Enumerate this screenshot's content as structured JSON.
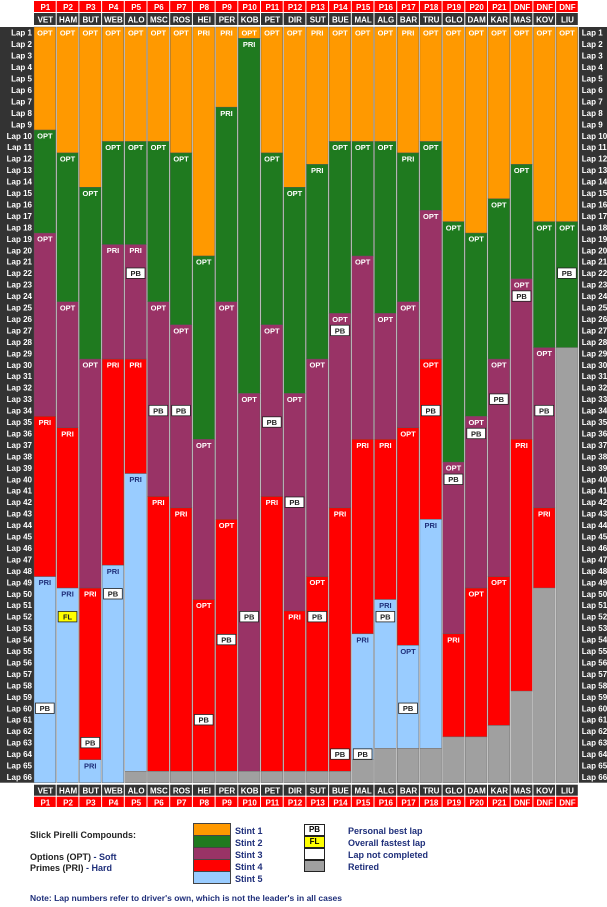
{
  "chart_data": {
    "type": "stacked-bar",
    "total_laps": 66,
    "lap_label_prefix": "Lap",
    "drivers": [
      {
        "pos": "P1",
        "code": "VET",
        "stints": [
          {
            "tyre": "OPT",
            "start": 1,
            "end": 9
          },
          {
            "tyre": "OPT",
            "start": 10,
            "end": 18
          },
          {
            "tyre": "OPT",
            "start": 19,
            "end": 34
          },
          {
            "tyre": "PRI",
            "start": 35,
            "end": 48
          },
          {
            "tyre": "PRI",
            "start": 49,
            "end": 66
          }
        ],
        "pb": [
          60
        ],
        "fl": [],
        "retired_from": null
      },
      {
        "pos": "P2",
        "code": "HAM",
        "stints": [
          {
            "tyre": "OPT",
            "start": 1,
            "end": 11
          },
          {
            "tyre": "OPT",
            "start": 12,
            "end": 24
          },
          {
            "tyre": "OPT",
            "start": 25,
            "end": 35
          },
          {
            "tyre": "PRI",
            "start": 36,
            "end": 49
          },
          {
            "tyre": "PRI",
            "start": 50,
            "end": 66
          }
        ],
        "pb": [],
        "fl": [
          52
        ],
        "retired_from": null
      },
      {
        "pos": "P3",
        "code": "BUT",
        "stints": [
          {
            "tyre": "OPT",
            "start": 1,
            "end": 14
          },
          {
            "tyre": "OPT",
            "start": 15,
            "end": 29
          },
          {
            "tyre": "OPT",
            "start": 30,
            "end": 49
          },
          {
            "tyre": "PRI",
            "start": 50,
            "end": 64
          },
          {
            "tyre": "PRI",
            "start": 65,
            "end": 66
          }
        ],
        "pb": [
          63
        ],
        "fl": [],
        "retired_from": null
      },
      {
        "pos": "P4",
        "code": "WEB",
        "stints": [
          {
            "tyre": "OPT",
            "start": 1,
            "end": 10
          },
          {
            "tyre": "OPT",
            "start": 11,
            "end": 19
          },
          {
            "tyre": "PRI",
            "start": 20,
            "end": 29
          },
          {
            "tyre": "PRI",
            "start": 30,
            "end": 47
          },
          {
            "tyre": "PRI",
            "start": 48,
            "end": 66
          }
        ],
        "pb": [
          50
        ],
        "fl": [],
        "retired_from": null
      },
      {
        "pos": "P5",
        "code": "ALO",
        "stints": [
          {
            "tyre": "OPT",
            "start": 1,
            "end": 10
          },
          {
            "tyre": "OPT",
            "start": 11,
            "end": 19
          },
          {
            "tyre": "PRI",
            "start": 20,
            "end": 29
          },
          {
            "tyre": "PRI",
            "start": 30,
            "end": 39
          },
          {
            "tyre": "PRI",
            "start": 40,
            "end": 65
          }
        ],
        "pb": [
          22
        ],
        "fl": [],
        "retired_from": null
      },
      {
        "pos": "P6",
        "code": "MSC",
        "stints": [
          {
            "tyre": "OPT",
            "start": 1,
            "end": 10
          },
          {
            "tyre": "OPT",
            "start": 11,
            "end": 24
          },
          {
            "tyre": "OPT",
            "start": 25,
            "end": 41
          },
          {
            "tyre": "PRI",
            "start": 42,
            "end": 65
          }
        ],
        "pb": [
          34
        ],
        "fl": [],
        "retired_from": null
      },
      {
        "pos": "P7",
        "code": "ROS",
        "stints": [
          {
            "tyre": "OPT",
            "start": 1,
            "end": 11
          },
          {
            "tyre": "OPT",
            "start": 12,
            "end": 26
          },
          {
            "tyre": "OPT",
            "start": 27,
            "end": 42
          },
          {
            "tyre": "PRI",
            "start": 43,
            "end": 65
          }
        ],
        "pb": [
          34
        ],
        "fl": [],
        "retired_from": null
      },
      {
        "pos": "P8",
        "code": "HEI",
        "stints": [
          {
            "tyre": "PRI",
            "start": 1,
            "end": 20
          },
          {
            "tyre": "OPT",
            "start": 21,
            "end": 36
          },
          {
            "tyre": "OPT",
            "start": 37,
            "end": 50
          },
          {
            "tyre": "OPT",
            "start": 51,
            "end": 65
          }
        ],
        "pb": [
          61
        ],
        "fl": [],
        "retired_from": null
      },
      {
        "pos": "P9",
        "code": "PER",
        "stints": [
          {
            "tyre": "PRI",
            "start": 1,
            "end": 7
          },
          {
            "tyre": "PRI",
            "start": 8,
            "end": 24
          },
          {
            "tyre": "OPT",
            "start": 25,
            "end": 43
          },
          {
            "tyre": "OPT",
            "start": 44,
            "end": 65
          }
        ],
        "pb": [
          54
        ],
        "fl": [],
        "retired_from": null
      },
      {
        "pos": "P10",
        "code": "KOB",
        "stints": [
          {
            "tyre": "OPT",
            "start": 1,
            "end": 1
          },
          {
            "tyre": "PRI",
            "start": 2,
            "end": 32
          },
          {
            "tyre": "OPT",
            "start": 33,
            "end": 65
          }
        ],
        "pb": [
          52
        ],
        "fl": [],
        "retired_from": null
      },
      {
        "pos": "P11",
        "code": "PET",
        "stints": [
          {
            "tyre": "OPT",
            "start": 1,
            "end": 11
          },
          {
            "tyre": "OPT",
            "start": 12,
            "end": 26
          },
          {
            "tyre": "OPT",
            "start": 27,
            "end": 41
          },
          {
            "tyre": "PRI",
            "start": 42,
            "end": 65
          }
        ],
        "pb": [
          35
        ],
        "fl": [],
        "retired_from": null
      },
      {
        "pos": "P12",
        "code": "DIR",
        "stints": [
          {
            "tyre": "OPT",
            "start": 1,
            "end": 14
          },
          {
            "tyre": "OPT",
            "start": 15,
            "end": 32
          },
          {
            "tyre": "OPT",
            "start": 33,
            "end": 51
          },
          {
            "tyre": "PRI",
            "start": 52,
            "end": 65
          }
        ],
        "pb": [
          42
        ],
        "fl": [],
        "retired_from": null
      },
      {
        "pos": "P13",
        "code": "SUT",
        "stints": [
          {
            "tyre": "PRI",
            "start": 1,
            "end": 12
          },
          {
            "tyre": "PRI",
            "start": 13,
            "end": 29
          },
          {
            "tyre": "OPT",
            "start": 30,
            "end": 48
          },
          {
            "tyre": "OPT",
            "start": 49,
            "end": 65
          }
        ],
        "pb": [
          52
        ],
        "fl": [],
        "retired_from": null
      },
      {
        "pos": "P14",
        "code": "BUE",
        "stints": [
          {
            "tyre": "OPT",
            "start": 1,
            "end": 10
          },
          {
            "tyre": "OPT",
            "start": 11,
            "end": 25
          },
          {
            "tyre": "OPT",
            "start": 26,
            "end": 42
          },
          {
            "tyre": "PRI",
            "start": 43,
            "end": 65
          }
        ],
        "pb": [
          27,
          64
        ],
        "fl": [],
        "retired_from": null
      },
      {
        "pos": "P15",
        "code": "MAL",
        "stints": [
          {
            "tyre": "OPT",
            "start": 1,
            "end": 10
          },
          {
            "tyre": "OPT",
            "start": 11,
            "end": 20
          },
          {
            "tyre": "OPT",
            "start": 21,
            "end": 36
          },
          {
            "tyre": "PRI",
            "start": 37,
            "end": 53
          },
          {
            "tyre": "PRI",
            "start": 54,
            "end": 64
          }
        ],
        "pb": [
          64
        ],
        "fl": [],
        "retired_from": null
      },
      {
        "pos": "P16",
        "code": "ALG",
        "stints": [
          {
            "tyre": "OPT",
            "start": 1,
            "end": 10
          },
          {
            "tyre": "OPT",
            "start": 11,
            "end": 25
          },
          {
            "tyre": "OPT",
            "start": 26,
            "end": 36
          },
          {
            "tyre": "PRI",
            "start": 37,
            "end": 50
          },
          {
            "tyre": "PRI",
            "start": 51,
            "end": 63
          }
        ],
        "pb": [
          52
        ],
        "fl": [],
        "retired_from": null
      },
      {
        "pos": "P17",
        "code": "BAR",
        "stints": [
          {
            "tyre": "PRI",
            "start": 1,
            "end": 11
          },
          {
            "tyre": "PRI",
            "start": 12,
            "end": 24
          },
          {
            "tyre": "OPT",
            "start": 25,
            "end": 35
          },
          {
            "tyre": "OPT",
            "start": 36,
            "end": 54
          },
          {
            "tyre": "OPT",
            "start": 55,
            "end": 63
          }
        ],
        "pb": [
          60
        ],
        "fl": [],
        "retired_from": null
      },
      {
        "pos": "P18",
        "code": "TRU",
        "stints": [
          {
            "tyre": "OPT",
            "start": 1,
            "end": 10
          },
          {
            "tyre": "OPT",
            "start": 11,
            "end": 16
          },
          {
            "tyre": "OPT",
            "start": 17,
            "end": 29
          },
          {
            "tyre": "OPT",
            "start": 30,
            "end": 43
          },
          {
            "tyre": "PRI",
            "start": 44,
            "end": 63
          }
        ],
        "pb": [
          34
        ],
        "fl": [],
        "retired_from": null
      },
      {
        "pos": "P19",
        "code": "GLO",
        "stints": [
          {
            "tyre": "OPT",
            "start": 1,
            "end": 17
          },
          {
            "tyre": "OPT",
            "start": 18,
            "end": 38
          },
          {
            "tyre": "OPT",
            "start": 39,
            "end": 53
          },
          {
            "tyre": "PRI",
            "start": 54,
            "end": 62
          }
        ],
        "pb": [
          40
        ],
        "fl": [],
        "retired_from": null
      },
      {
        "pos": "P20",
        "code": "DAM",
        "stints": [
          {
            "tyre": "OPT",
            "start": 1,
            "end": 18
          },
          {
            "tyre": "OPT",
            "start": 19,
            "end": 34
          },
          {
            "tyre": "OPT",
            "start": 35,
            "end": 49
          },
          {
            "tyre": "OPT",
            "start": 50,
            "end": 62
          }
        ],
        "pb": [
          36
        ],
        "fl": [],
        "retired_from": null
      },
      {
        "pos": "P21",
        "code": "KAR",
        "stints": [
          {
            "tyre": "OPT",
            "start": 1,
            "end": 15
          },
          {
            "tyre": "OPT",
            "start": 16,
            "end": 29
          },
          {
            "tyre": "OPT",
            "start": 30,
            "end": 48
          },
          {
            "tyre": "OPT",
            "start": 49,
            "end": 61
          }
        ],
        "pb": [
          33
        ],
        "fl": [],
        "retired_from": null
      },
      {
        "pos": "DNF",
        "code": "MAS",
        "stints": [
          {
            "tyre": "OPT",
            "start": 1,
            "end": 12
          },
          {
            "tyre": "OPT",
            "start": 13,
            "end": 22
          },
          {
            "tyre": "OPT",
            "start": 23,
            "end": 36
          },
          {
            "tyre": "PRI",
            "start": 37,
            "end": 58
          }
        ],
        "pb": [
          24
        ],
        "fl": [],
        "retired_from": 59
      },
      {
        "pos": "DNF",
        "code": "KOV",
        "stints": [
          {
            "tyre": "OPT",
            "start": 1,
            "end": 17
          },
          {
            "tyre": "OPT",
            "start": 18,
            "end": 28
          },
          {
            "tyre": "OPT",
            "start": 29,
            "end": 42
          },
          {
            "tyre": "PRI",
            "start": 43,
            "end": 49
          }
        ],
        "pb": [
          34
        ],
        "fl": [],
        "retired_from": 50
      },
      {
        "pos": "DNF",
        "code": "LIU",
        "stints": [
          {
            "tyre": "OPT",
            "start": 1,
            "end": 17
          },
          {
            "tyre": "OPT",
            "start": 18,
            "end": 28
          }
        ],
        "pb": [
          22
        ],
        "fl": [],
        "retired_from": 29
      }
    ],
    "stint_colors": [
      "#ff9900",
      "#1f7a1f",
      "#993366",
      "#ff0000",
      "#99ccff"
    ],
    "retired_color": "#a0a0a0",
    "legend": {
      "heading": "Slick Pirelli Compounds:",
      "options_label": "Options (OPT)",
      "options_value": "- Soft",
      "primes_label": "Primes (PRI)",
      "primes_value": "- Hard",
      "stints": [
        "Stint 1",
        "Stint 2",
        "Stint 3",
        "Stint 4",
        "Stint 5"
      ],
      "symbols": [
        {
          "code": "PB",
          "text": "Personal best lap",
          "color": "#ffffff"
        },
        {
          "code": "FL",
          "text": "Overall fastest lap",
          "color": "#ffff00"
        },
        {
          "code": "",
          "text": "Lap not completed",
          "color": "#ffffff"
        },
        {
          "code": "",
          "text": "Retired",
          "color": "#a0a0a0"
        }
      ],
      "note": "Note: Lap numbers refer to driver's own, which is not the leader's in all cases"
    }
  }
}
